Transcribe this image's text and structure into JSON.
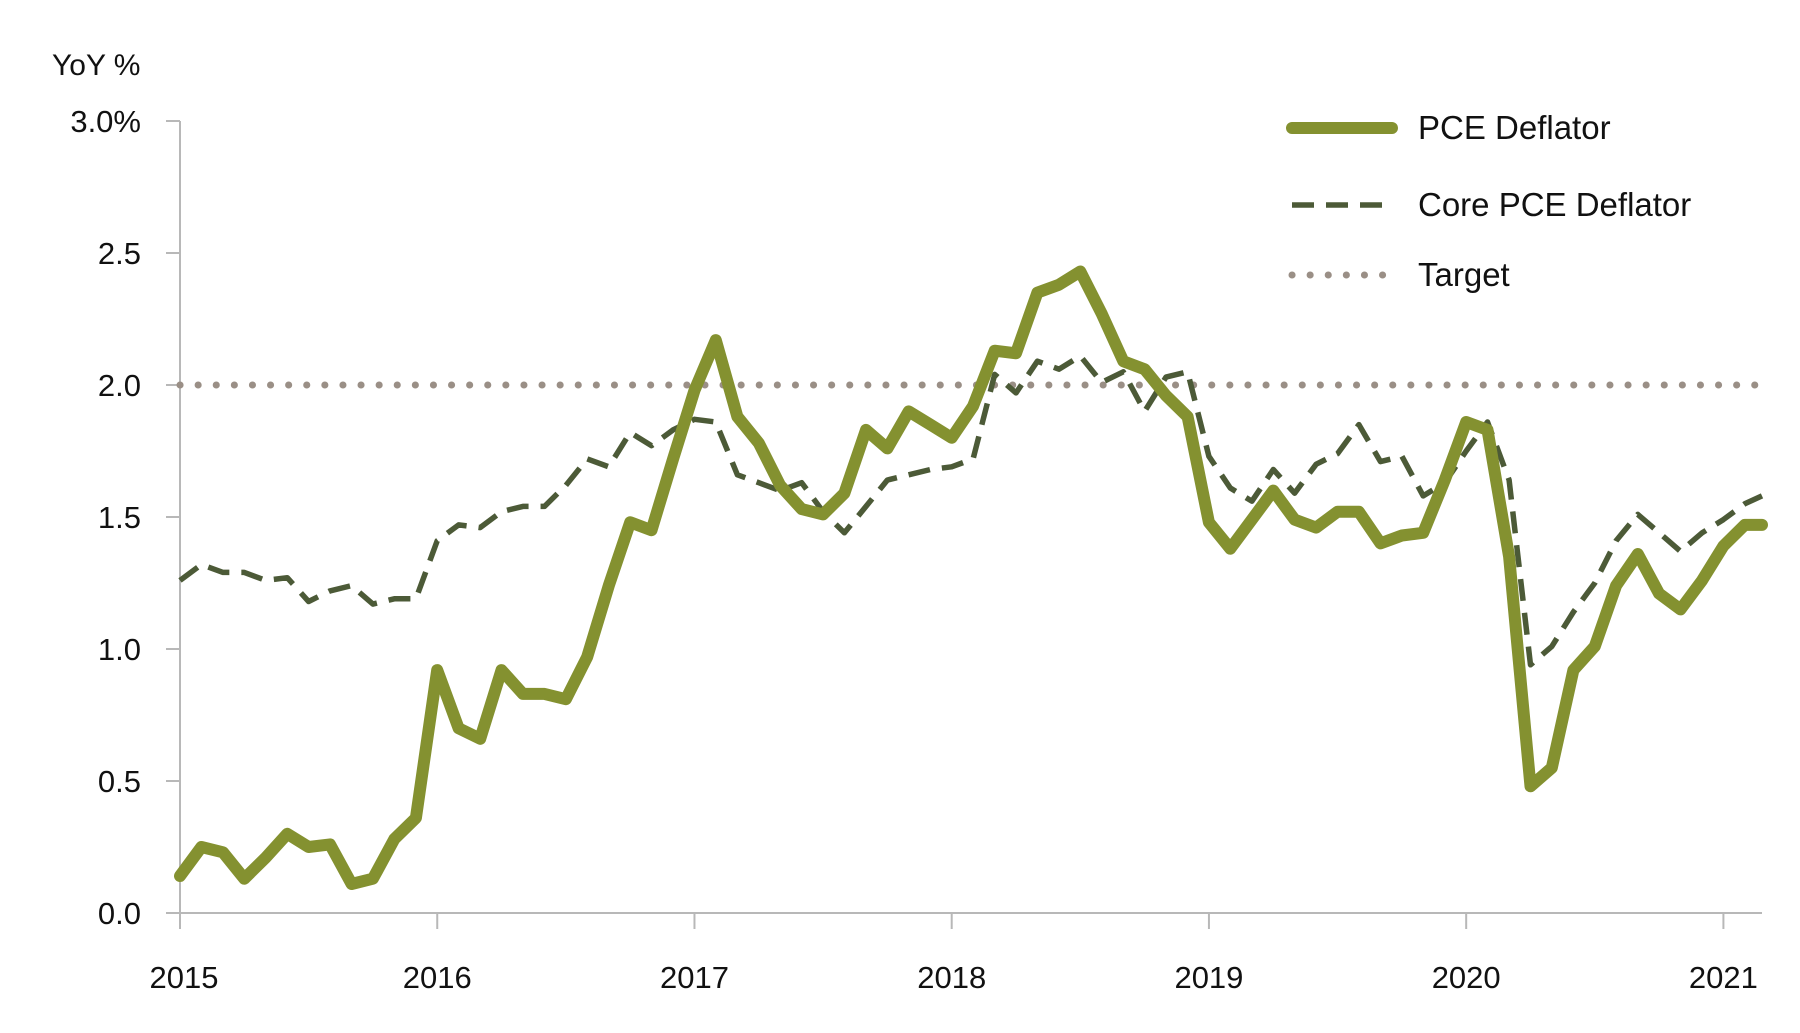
{
  "chart_data": {
    "type": "line",
    "ylabel": "YoY %",
    "ylim": [
      0.0,
      3.0
    ],
    "yticks": [
      "0.0",
      "0.5",
      "1.0",
      "1.5",
      "2.0",
      "2.5",
      "3.0%"
    ],
    "ytick_values": [
      0.0,
      0.5,
      1.0,
      1.5,
      2.0,
      2.5,
      3.0
    ],
    "xlim": [
      2015.0,
      2021.15
    ],
    "xticks": [
      "2015",
      "2016",
      "2017",
      "2018",
      "2019",
      "2020",
      "2021"
    ],
    "xtick_values": [
      2015,
      2016,
      2017,
      2018,
      2019,
      2020,
      2021
    ],
    "grid": false,
    "legend": "top-right",
    "series": [
      {
        "name": "PCE Deflator",
        "style": "solid",
        "color": "#849130",
        "x": [
          2015.0,
          2015.083,
          2015.167,
          2015.25,
          2015.333,
          2015.417,
          2015.5,
          2015.583,
          2015.667,
          2015.75,
          2015.833,
          2015.917,
          2016.0,
          2016.083,
          2016.167,
          2016.25,
          2016.333,
          2016.417,
          2016.5,
          2016.583,
          2016.667,
          2016.75,
          2016.833,
          2016.917,
          2017.0,
          2017.083,
          2017.167,
          2017.25,
          2017.333,
          2017.417,
          2017.5,
          2017.583,
          2017.667,
          2017.75,
          2017.833,
          2017.917,
          2018.0,
          2018.083,
          2018.167,
          2018.25,
          2018.333,
          2018.417,
          2018.5,
          2018.583,
          2018.667,
          2018.75,
          2018.833,
          2018.917,
          2019.0,
          2019.083,
          2019.167,
          2019.25,
          2019.333,
          2019.417,
          2019.5,
          2019.583,
          2019.667,
          2019.75,
          2019.833,
          2019.917,
          2020.0,
          2020.083,
          2020.167,
          2020.25,
          2020.333,
          2020.417,
          2020.5,
          2020.583,
          2020.667,
          2020.75,
          2020.833,
          2020.917,
          2021.0,
          2021.083,
          2021.15
        ],
        "y": [
          0.14,
          0.25,
          0.23,
          0.13,
          0.21,
          0.3,
          0.25,
          0.26,
          0.11,
          0.13,
          0.28,
          0.36,
          0.92,
          0.7,
          0.66,
          0.92,
          0.83,
          0.83,
          0.81,
          0.97,
          1.24,
          1.48,
          1.45,
          1.72,
          1.98,
          2.17,
          1.88,
          1.78,
          1.62,
          1.53,
          1.51,
          1.59,
          1.83,
          1.76,
          1.9,
          1.85,
          1.8,
          1.92,
          2.13,
          2.12,
          2.35,
          2.38,
          2.43,
          2.27,
          2.09,
          2.06,
          1.96,
          1.88,
          1.48,
          1.38,
          1.49,
          1.6,
          1.49,
          1.46,
          1.52,
          1.52,
          1.4,
          1.43,
          1.44,
          1.64,
          1.86,
          1.83,
          1.35,
          0.48,
          0.55,
          0.92,
          1.01,
          1.24,
          1.36,
          1.21,
          1.15,
          1.26,
          1.39,
          1.47,
          1.47
        ]
      },
      {
        "name": "Core PCE Deflator",
        "style": "dashed",
        "color": "#4c5a37",
        "x": [
          2015.0,
          2015.083,
          2015.167,
          2015.25,
          2015.333,
          2015.417,
          2015.5,
          2015.583,
          2015.667,
          2015.75,
          2015.833,
          2015.917,
          2016.0,
          2016.083,
          2016.167,
          2016.25,
          2016.333,
          2016.417,
          2016.5,
          2016.583,
          2016.667,
          2016.75,
          2016.833,
          2016.917,
          2017.0,
          2017.083,
          2017.167,
          2017.25,
          2017.333,
          2017.417,
          2017.5,
          2017.583,
          2017.667,
          2017.75,
          2017.833,
          2017.917,
          2018.0,
          2018.083,
          2018.167,
          2018.25,
          2018.333,
          2018.417,
          2018.5,
          2018.583,
          2018.667,
          2018.75,
          2018.833,
          2018.917,
          2019.0,
          2019.083,
          2019.167,
          2019.25,
          2019.333,
          2019.417,
          2019.5,
          2019.583,
          2019.667,
          2019.75,
          2019.833,
          2019.917,
          2020.0,
          2020.083,
          2020.167,
          2020.25,
          2020.333,
          2020.417,
          2020.5,
          2020.583,
          2020.667,
          2020.75,
          2020.833,
          2020.917,
          2021.0,
          2021.083,
          2021.15
        ],
        "y": [
          1.26,
          1.32,
          1.29,
          1.29,
          1.26,
          1.27,
          1.18,
          1.22,
          1.24,
          1.17,
          1.19,
          1.19,
          1.41,
          1.47,
          1.46,
          1.52,
          1.54,
          1.54,
          1.62,
          1.72,
          1.69,
          1.82,
          1.77,
          1.83,
          1.87,
          1.86,
          1.66,
          1.63,
          1.6,
          1.63,
          1.52,
          1.44,
          1.54,
          1.64,
          1.66,
          1.68,
          1.69,
          1.72,
          2.04,
          1.97,
          2.09,
          2.06,
          2.11,
          2.01,
          2.05,
          1.9,
          2.03,
          2.05,
          1.73,
          1.61,
          1.56,
          1.68,
          1.59,
          1.7,
          1.74,
          1.85,
          1.71,
          1.73,
          1.58,
          1.63,
          1.75,
          1.86,
          1.64,
          0.94,
          1.01,
          1.14,
          1.25,
          1.41,
          1.51,
          1.44,
          1.37,
          1.44,
          1.49,
          1.55,
          1.58
        ]
      },
      {
        "name": "Target",
        "style": "dotted",
        "color": "#9a8f86",
        "x": [
          2015.0,
          2021.15
        ],
        "y": [
          2.0,
          2.0
        ]
      }
    ]
  }
}
